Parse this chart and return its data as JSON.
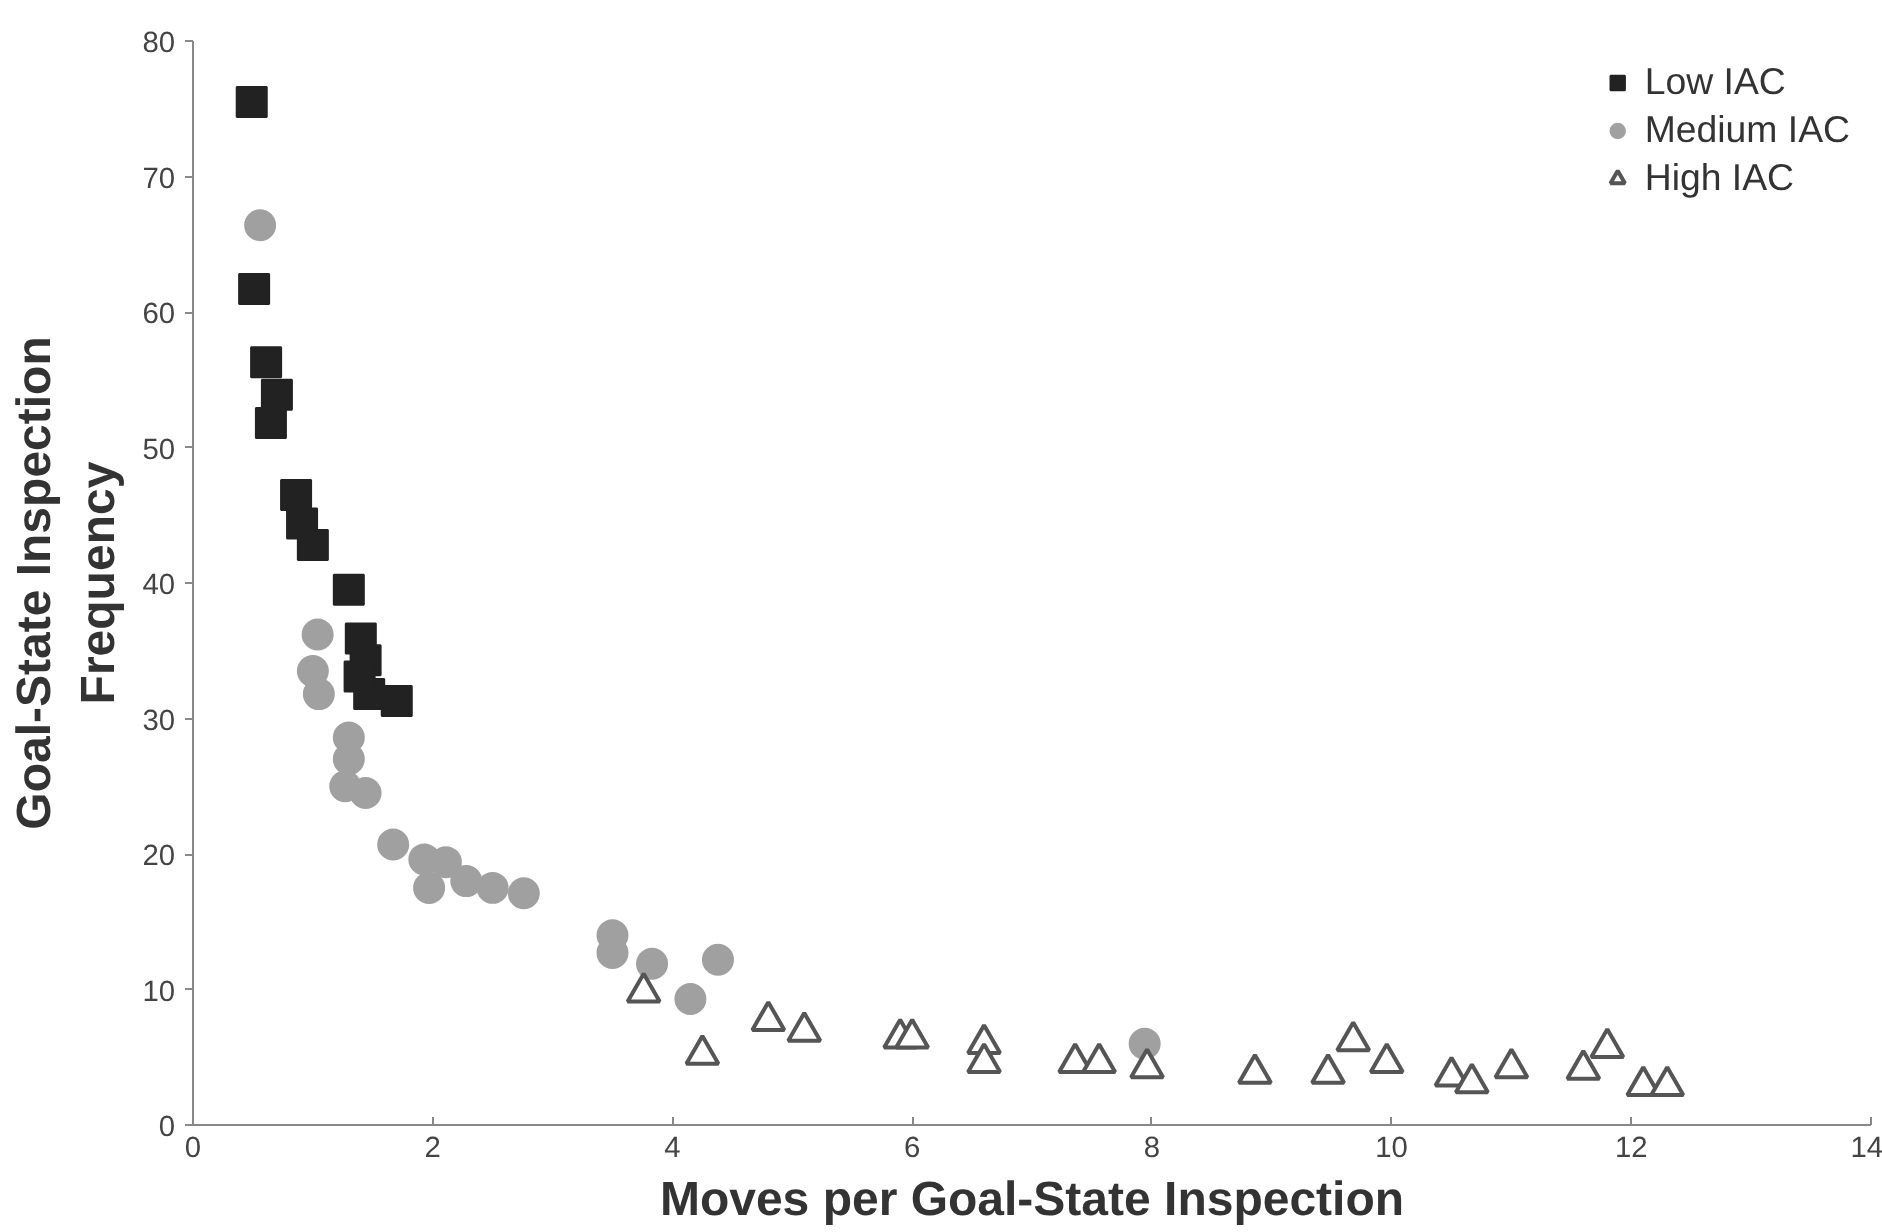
{
  "chart_data": {
    "type": "scatter",
    "xlabel": "Moves per Goal-State Inspection",
    "ylabel": "Goal-State Inspection\nFrequency",
    "xlim": [
      0,
      14
    ],
    "ylim": [
      0,
      80
    ],
    "xticks": [
      0,
      2,
      4,
      6,
      8,
      10,
      12,
      14
    ],
    "yticks": [
      0,
      10,
      20,
      30,
      40,
      50,
      60,
      70,
      80
    ],
    "grid": false,
    "legend": "top right",
    "series": [
      {
        "name": "Low IAC",
        "color": "#222222",
        "marker": "square",
        "x": [
          0.49,
          0.51,
          0.61,
          0.7,
          0.65,
          0.86,
          0.91,
          1.0,
          1.3,
          1.4,
          1.44,
          1.47,
          1.7,
          1.39
        ],
        "values": [
          75.5,
          61.7,
          56.3,
          53.9,
          51.8,
          46.5,
          44.4,
          42.8,
          39.5,
          35.9,
          34.3,
          31.8,
          31.3,
          33.1
        ]
      },
      {
        "name": "Medium IAC",
        "color": "#a0a0a0",
        "marker": "circle",
        "x": [
          0.56,
          1.04,
          1.0,
          1.05,
          1.3,
          1.3,
          1.27,
          1.44,
          1.67,
          1.93,
          2.11,
          1.97,
          2.28,
          2.5,
          2.76,
          3.5,
          3.5,
          3.83,
          4.15,
          4.38,
          7.94
        ],
        "values": [
          66.4,
          36.2,
          33.5,
          31.8,
          28.6,
          27,
          25,
          24.5,
          20.7,
          19.6,
          19.4,
          17.5,
          18,
          17.5,
          17.1,
          14,
          12.7,
          11.9,
          9.3,
          12.2,
          6.0
        ]
      },
      {
        "name": "High IAC",
        "color": "#555555",
        "marker": "triangle",
        "x": [
          3.76,
          4.25,
          4.8,
          5.1,
          5.9,
          6.0,
          6.6,
          6.6,
          7.36,
          7.56,
          7.96,
          8.86,
          9.47,
          9.68,
          9.96,
          10.5,
          10.67,
          11.0,
          11.6,
          11.8,
          12.1,
          12.3
        ],
        "values": [
          9.8,
          5.2,
          7.7,
          6.9,
          6.4,
          6.4,
          6.0,
          4.6,
          4.6,
          4.6,
          4.2,
          3.8,
          3.8,
          6.2,
          4.6,
          3.6,
          3.1,
          4.2,
          4.1,
          5.7,
          2.9,
          2.9
        ]
      }
    ]
  }
}
